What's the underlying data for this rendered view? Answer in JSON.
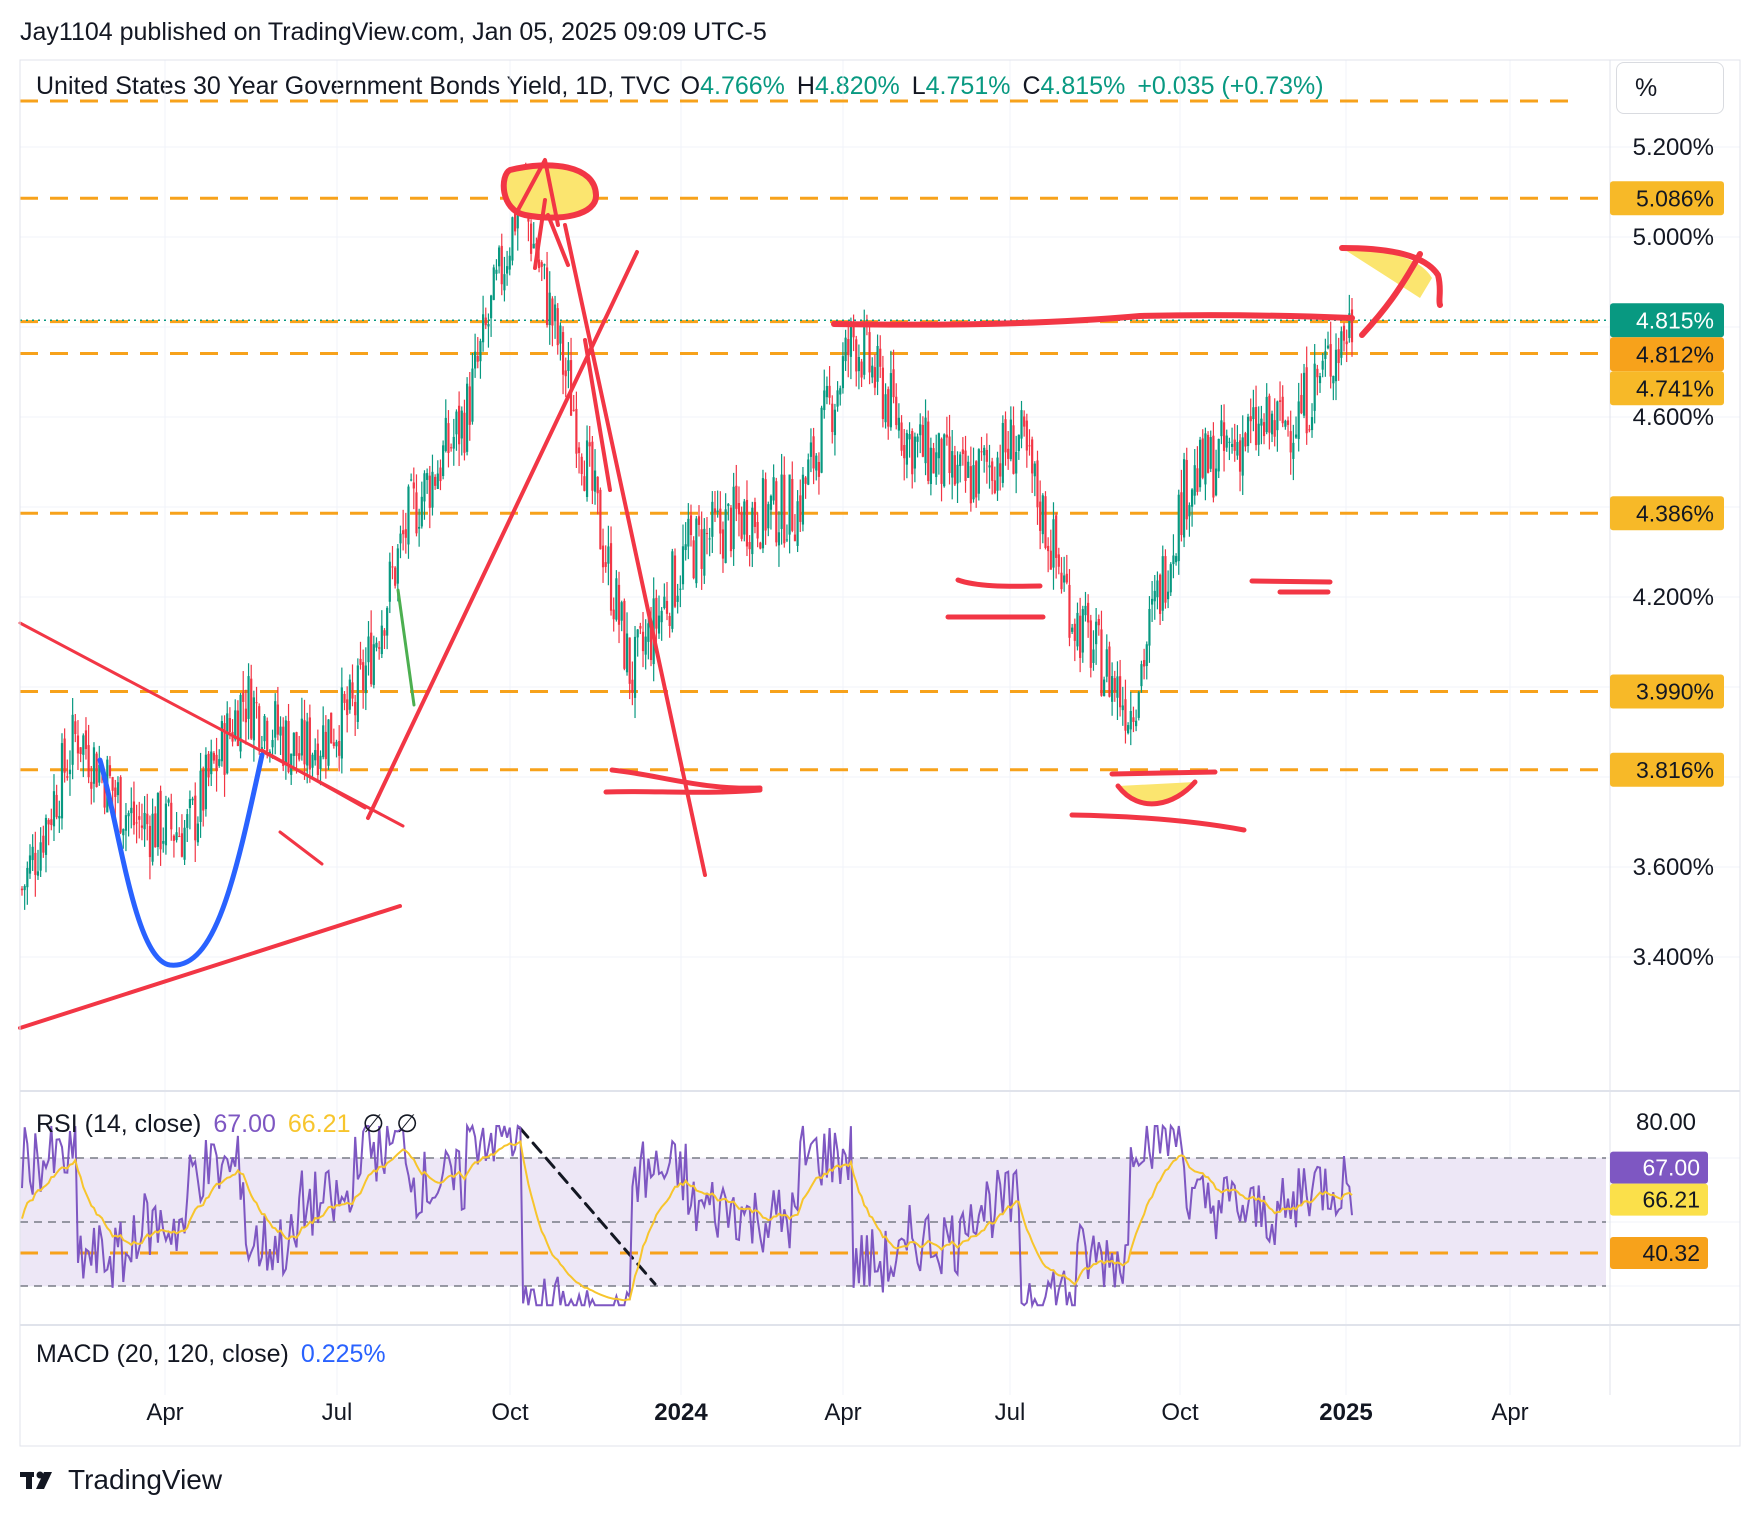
{
  "header": {
    "published": "Jay1104 published on TradingView.com, Jan 05, 2025 09:09 UTC-5",
    "symbol": "United States 30 Year Government Bonds Yield, 1D, TVC",
    "o_label": "O",
    "o_value": "4.766%",
    "h_label": "H",
    "h_value": "4.820%",
    "l_label": "L",
    "l_value": "4.751%",
    "c_label": "C",
    "c_value": "4.815%",
    "change": "+0.035 (+0.73%)"
  },
  "scale_button": "%",
  "price_axis": [
    "5.200%",
    "5.000%",
    "4.600%",
    "4.200%",
    "3.600%",
    "3.400%"
  ],
  "price_tags": [
    {
      "text": "5.086%",
      "value": 5.086,
      "color": "#f7b928",
      "text_color": "#131722"
    },
    {
      "text": "4.815%",
      "value": 4.815,
      "color": "#089981",
      "text_color": "#ffffff"
    },
    {
      "text": "4.812%",
      "value": 4.812,
      "color": "#f7a21b",
      "text_color": "#131722"
    },
    {
      "text": "4.741%",
      "value": 4.741,
      "color": "#f7b928",
      "text_color": "#131722"
    },
    {
      "text": "4.386%",
      "value": 4.386,
      "color": "#f7b928",
      "text_color": "#131722"
    },
    {
      "text": "3.990%",
      "value": 3.99,
      "color": "#f7b928",
      "text_color": "#131722"
    },
    {
      "text": "3.816%",
      "value": 3.816,
      "color": "#f7b928",
      "text_color": "#131722"
    }
  ],
  "time_axis": [
    {
      "label": "Apr",
      "bold": false
    },
    {
      "label": "Jul",
      "bold": false
    },
    {
      "label": "Oct",
      "bold": false
    },
    {
      "label": "2024",
      "bold": true
    },
    {
      "label": "Apr",
      "bold": false
    },
    {
      "label": "Jul",
      "bold": false
    },
    {
      "label": "Oct",
      "bold": false
    },
    {
      "label": "2025",
      "bold": true
    },
    {
      "label": "Apr",
      "bold": false
    }
  ],
  "rsi": {
    "title": "RSI (14, close)",
    "value": "67.00",
    "ma_value": "66.21",
    "na1": "∅",
    "na2": "∅",
    "axis_label": "80.00",
    "tags": [
      {
        "text": "67.00",
        "color": "#7e57c2",
        "text_color": "#ffffff"
      },
      {
        "text": "66.21",
        "color": "#fbe04a",
        "text_color": "#131722"
      },
      {
        "text": "40.32",
        "color": "#f7a21b",
        "text_color": "#131722"
      }
    ]
  },
  "macd": {
    "title": "MACD (20, 120, close)",
    "value": "0.225%"
  },
  "logo": "TradingView",
  "colors": {
    "up": "#089981",
    "down": "#f23645",
    "level": "#f7a21b",
    "annotation": "#f23645",
    "rsi": "#7e57c2",
    "rsi_ma": "#f7c52d",
    "rsi_band": "#ede7f6"
  },
  "chart_data": {
    "type": "candlestick",
    "title": "United States 30 Year Government Bonds Yield, 1D, TVC",
    "ylim": [
      3.35,
      5.35
    ],
    "x_ticks": [
      "Apr",
      "Jul",
      "Oct",
      "2024",
      "Apr",
      "Jul",
      "Oct",
      "2025",
      "Apr"
    ],
    "horizontal_levels": [
      5.086,
      4.812,
      4.741,
      4.386,
      3.99,
      3.816
    ],
    "last_close": 4.815,
    "approx_path": [
      {
        "t": "2023-01",
        "close": 3.55
      },
      {
        "t": "2023-02",
        "close": 3.9
      },
      {
        "t": "2023-03",
        "close": 3.7
      },
      {
        "t": "2023-04",
        "close": 3.68
      },
      {
        "t": "2023-05",
        "close": 3.98
      },
      {
        "t": "2023-06",
        "close": 3.85
      },
      {
        "t": "2023-07",
        "close": 3.95
      },
      {
        "t": "2023-08",
        "close": 4.38
      },
      {
        "t": "2023-09",
        "close": 4.6
      },
      {
        "t": "2023-10",
        "close": 5.1
      },
      {
        "t": "2023-11",
        "close": 4.6
      },
      {
        "t": "2023-12",
        "close": 4.02
      },
      {
        "t": "2024-01",
        "close": 4.3
      },
      {
        "t": "2024-02",
        "close": 4.38
      },
      {
        "t": "2024-03",
        "close": 4.4
      },
      {
        "t": "2024-04",
        "close": 4.78
      },
      {
        "t": "2024-05",
        "close": 4.55
      },
      {
        "t": "2024-06",
        "close": 4.45
      },
      {
        "t": "2024-07",
        "close": 4.55
      },
      {
        "t": "2024-08",
        "close": 4.15
      },
      {
        "t": "2024-09",
        "close": 3.95
      },
      {
        "t": "2024-10",
        "close": 4.45
      },
      {
        "t": "2024-11",
        "close": 4.55
      },
      {
        "t": "2024-12",
        "close": 4.6
      },
      {
        "t": "2025-01",
        "close": 4.815
      }
    ],
    "rsi": {
      "ylim": [
        20,
        85
      ],
      "levels": [
        70,
        50,
        40.32,
        30
      ],
      "last": 67.0,
      "ma_last": 66.21
    }
  }
}
